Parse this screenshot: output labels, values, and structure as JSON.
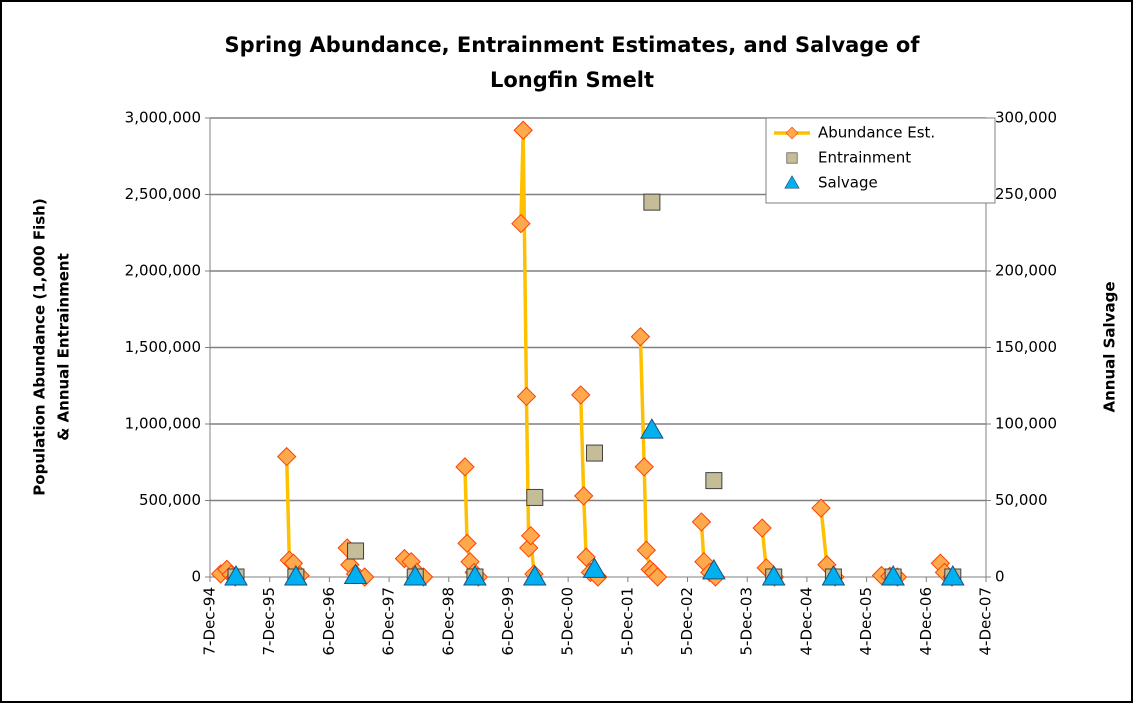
{
  "chart_data": {
    "type": "line",
    "title": [
      "Spring Abundance, Entrainment Estimates, and Salvage of",
      "Longfin Smelt"
    ],
    "ylabel": [
      "Population Abundance (1,000 Fish)",
      "& Annual Entrainment"
    ],
    "y2label": "Annual Salvage",
    "xlim": [
      "1994-12-07",
      "2007-12-04"
    ],
    "xticks": [
      {
        "value": "1994-12-07",
        "label": "7-Dec-94"
      },
      {
        "value": "1995-12-07",
        "label": "7-Dec-95"
      },
      {
        "value": "1996-12-06",
        "label": "6-Dec-96"
      },
      {
        "value": "1997-12-06",
        "label": "6-Dec-97"
      },
      {
        "value": "1998-12-06",
        "label": "6-Dec-98"
      },
      {
        "value": "1999-12-06",
        "label": "6-Dec-99"
      },
      {
        "value": "2000-12-05",
        "label": "5-Dec-00"
      },
      {
        "value": "2001-12-05",
        "label": "5-Dec-01"
      },
      {
        "value": "2002-12-05",
        "label": "5-Dec-02"
      },
      {
        "value": "2003-12-05",
        "label": "5-Dec-03"
      },
      {
        "value": "2004-12-04",
        "label": "4-Dec-04"
      },
      {
        "value": "2005-12-04",
        "label": "4-Dec-05"
      },
      {
        "value": "2006-12-04",
        "label": "4-Dec-06"
      },
      {
        "value": "2007-12-04",
        "label": "4-Dec-07"
      }
    ],
    "ylim": [
      0,
      3000000
    ],
    "yticks": [
      0,
      {
        "value": 500000,
        "label": "500,000"
      },
      {
        "value": 1000000,
        "label": "1,000,000"
      },
      {
        "value": 1500000,
        "label": "1,500,000"
      },
      {
        "value": 2000000,
        "label": "2,000,000"
      },
      {
        "value": 2500000,
        "label": "2,500,000"
      },
      {
        "value": 3000000,
        "label": "3,000,000"
      }
    ],
    "y2lim": [
      0,
      300000
    ],
    "y2ticks": [
      0,
      {
        "value": 50000,
        "label": "50,000"
      },
      {
        "value": 100000,
        "label": "100,000"
      },
      {
        "value": 150000,
        "label": "150,000"
      },
      {
        "value": 200000,
        "label": "200,000"
      },
      {
        "value": 250000,
        "label": "250,000"
      },
      {
        "value": 300000,
        "label": "300,000"
      }
    ],
    "grid": true,
    "legend": "upper right",
    "series": [
      {
        "name": "Abundance Est.",
        "style": "line",
        "marker": "diamond",
        "color": "#ffc000",
        "marker_color": "#ffa94d",
        "edge_color": "#ff4000",
        "x": [
          "1995-02-10",
          "1995-03-20",
          "1995-04-15",
          "1995-05-10",
          null,
          "1996-03-20",
          "1996-04-05",
          "1996-04-30",
          "1996-06-10",
          null,
          "1997-03-25",
          "1997-04-10",
          "1997-05-15",
          "1997-07-10",
          null,
          "1998-03-10",
          "1998-04-20",
          "1998-05-25",
          "1998-07-05",
          null,
          "1999-03-15",
          "1999-03-28",
          "1999-04-15",
          "1999-05-10",
          "1999-06-05",
          null,
          "2000-02-20",
          "2000-03-05",
          "2000-03-25",
          "2000-04-08",
          "2000-04-20",
          "2000-05-10",
          null,
          "2001-02-20",
          "2001-03-10",
          "2001-03-25",
          "2001-04-20",
          "2001-06-05",
          null,
          "2002-02-20",
          "2002-03-15",
          "2002-03-28",
          "2002-04-20",
          "2002-05-10",
          "2002-06-05",
          null,
          "2003-02-28",
          "2003-03-15",
          "2003-04-20",
          "2003-05-25",
          null,
          "2004-03-05",
          "2004-03-30",
          "2004-05-20",
          null,
          "2005-02-28",
          "2005-04-05",
          "2005-05-25",
          null,
          "2006-03-05",
          "2006-04-25",
          "2006-06-10",
          null,
          "2007-02-28",
          "2007-03-25",
          "2007-05-10"
        ],
        "values": [
          20000,
          50000,
          15000,
          0,
          null,
          787000,
          110000,
          90000,
          10000,
          null,
          190000,
          80000,
          20000,
          0,
          null,
          120000,
          100000,
          30000,
          0,
          null,
          720000,
          220000,
          100000,
          30000,
          0,
          null,
          2310000,
          2920000,
          1180000,
          190000,
          270000,
          20000,
          null,
          1190000,
          530000,
          130000,
          30000,
          0,
          null,
          1570000,
          720000,
          175000,
          50000,
          30000,
          0,
          null,
          360000,
          100000,
          30000,
          0,
          null,
          320000,
          60000,
          0,
          null,
          450000,
          80000,
          0,
          null,
          10000,
          5000,
          0,
          null,
          90000,
          30000,
          0
        ]
      },
      {
        "name": "Entrainment",
        "style": "scatter",
        "marker": "square",
        "color": "#c4bd97",
        "edge_color": "#404040",
        "x": [
          "1995-05-15",
          "1996-05-15",
          "1997-05-15",
          "1998-05-15",
          "1999-05-15",
          "2000-05-15",
          "2001-05-15",
          "2002-05-01",
          "2003-05-15",
          "2004-05-15",
          "2005-05-15",
          "2006-05-15",
          "2007-05-15"
        ],
        "values": [
          0,
          0,
          170000,
          0,
          0,
          520000,
          810000,
          2450000,
          630000,
          0,
          0,
          0,
          0
        ]
      },
      {
        "name": "Salvage",
        "style": "scatter",
        "marker": "triangle",
        "axis": "y2",
        "color": "#00b0f0",
        "edge_color": "#1f4e79",
        "x": [
          "1995-05-15",
          "1996-05-15",
          "1997-05-15",
          "1998-05-15",
          "1999-05-15",
          "2000-05-15",
          "2001-05-15",
          "2002-05-01",
          "2003-05-15",
          "2004-05-15",
          "2005-05-15",
          "2006-05-15",
          "2007-05-15"
        ],
        "values": [
          0,
          0,
          1000,
          0,
          0,
          0,
          5000,
          96000,
          4000,
          0,
          0,
          0,
          0
        ]
      }
    ]
  }
}
